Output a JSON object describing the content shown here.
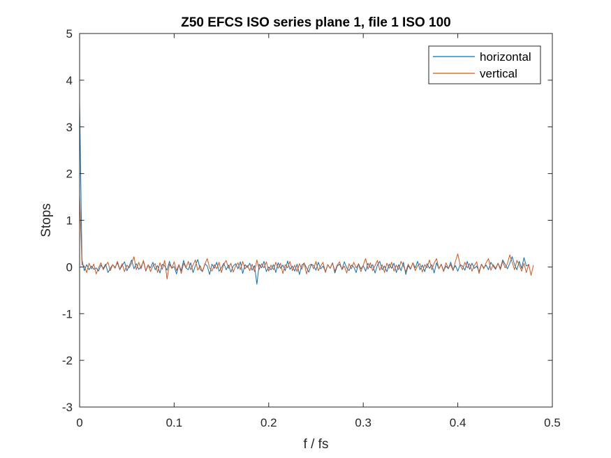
{
  "chart_data": {
    "type": "line",
    "title": "Z50 EFCS ISO series plane 1, file 1 ISO 100",
    "xlabel": "f / fs",
    "ylabel": "Stops",
    "xlim": [
      0,
      0.5
    ],
    "ylim": [
      -3,
      5
    ],
    "x_ticks": [
      0,
      0.1,
      0.2,
      0.3,
      0.4,
      0.5
    ],
    "x_tick_labels": [
      "0",
      "0.1",
      "0.2",
      "0.3",
      "0.4",
      "0.5"
    ],
    "y_ticks": [
      -3,
      -2,
      -1,
      0,
      1,
      2,
      3,
      4,
      5
    ],
    "y_tick_labels": [
      "-3",
      "-2",
      "-1",
      "0",
      "1",
      "2",
      "3",
      "4",
      "5"
    ],
    "grid": false,
    "legend_position": "top-right",
    "x_step": 0.0025,
    "series": [
      {
        "name": "horizontal",
        "color": "#0072BD",
        "values": [
          3.55,
          0.15,
          -0.08,
          0.05,
          -0.06,
          0.02,
          -0.05,
          -0.02,
          -0.09,
          0.04,
          -0.03,
          0.06,
          -0.12,
          -0.03,
          0.05,
          -0.01,
          0.09,
          -0.06,
          0.03,
          0.11,
          -0.08,
          0.02,
          0.15,
          -0.04,
          0.07,
          -0.05,
          0.0,
          0.12,
          -0.09,
          0.04,
          -0.02,
          0.1,
          -0.06,
          0.03,
          -0.13,
          0.06,
          0.02,
          -0.07,
          0.12,
          -0.03,
          0.01,
          -0.15,
          0.05,
          -0.08,
          0.14,
          -0.02,
          -0.06,
          0.09,
          -0.12,
          0.03,
          0.16,
          -0.05,
          -0.1,
          0.07,
          0.02,
          -0.16,
          0.06,
          -0.03,
          0.1,
          -0.09,
          -0.02,
          0.08,
          -0.06,
          0.04,
          -0.11,
          0.02,
          0.07,
          -0.04,
          0.11,
          -0.14,
          0.05,
          -0.01,
          0.08,
          -0.07,
          0.03,
          -0.37,
          0.06,
          -0.02,
          0.12,
          -0.1,
          0.0,
          -0.06,
          0.05,
          -0.12,
          0.09,
          -0.03,
          0.04,
          -0.08,
          0.13,
          -0.05,
          0.02,
          -0.09,
          0.06,
          -0.16,
          0.04,
          0.08,
          -0.02,
          -0.11,
          0.06,
          0.03,
          -0.07,
          0.1,
          -0.04,
          0.02,
          -0.1,
          0.05,
          -0.03,
          0.09,
          -0.13,
          0.02,
          0.06,
          -0.05,
          0.11,
          -0.02,
          -0.08,
          0.04,
          0.0,
          -0.12,
          0.07,
          -0.04,
          0.03,
          -0.09,
          0.08,
          -0.02,
          0.05,
          -0.13,
          0.04,
          0.12,
          -0.06,
          0.02,
          -0.1,
          0.06,
          -0.03,
          0.08,
          -0.12,
          0.05,
          -0.08,
          0.1,
          -0.16,
          0.03,
          -0.05,
          0.09,
          -0.02,
          0.12,
          -0.06,
          0.04,
          -0.1,
          0.07,
          -0.03,
          0.05,
          -0.13,
          0.09,
          -0.04,
          0.06,
          -0.08,
          0.02,
          -0.04,
          0.1,
          -0.06,
          0.03,
          -0.09,
          0.05,
          0.02,
          -0.07,
          0.12,
          -0.05,
          0.08,
          -0.03,
          0.02,
          -0.1,
          0.06,
          -0.02,
          0.04,
          -0.06,
          0.1,
          0.02,
          -0.05,
          0.08,
          -0.03,
          0.15,
          0.06,
          -0.04,
          0.08,
          0.22,
          0.05,
          -0.06,
          0.12,
          -0.03,
          0.2,
          0.02,
          0.05
        ]
      },
      {
        "name": "vertical",
        "color": "#D95319",
        "values": [
          1.55,
          0.05,
          0.02,
          -0.12,
          0.08,
          -0.04,
          0.06,
          -0.15,
          -0.02,
          0.09,
          -0.06,
          0.03,
          0.1,
          -0.08,
          0.05,
          -0.03,
          0.12,
          -0.05,
          0.07,
          -0.1,
          0.04,
          -0.02,
          0.08,
          0.22,
          -0.06,
          0.1,
          -0.04,
          0.14,
          -0.08,
          0.05,
          -0.1,
          0.02,
          0.07,
          -0.12,
          0.09,
          -0.05,
          0.14,
          -0.26,
          0.06,
          -0.03,
          0.11,
          -0.08,
          0.05,
          -0.14,
          0.08,
          -0.02,
          0.12,
          -0.06,
          0.04,
          0.15,
          -0.07,
          0.03,
          -0.1,
          0.06,
          0.18,
          -0.02,
          -0.09,
          0.05,
          -0.04,
          0.1,
          -0.12,
          0.06,
          0.14,
          -0.03,
          0.08,
          -0.11,
          0.02,
          0.09,
          -0.06,
          0.12,
          -0.04,
          0.03,
          -0.08,
          0.06,
          -0.1,
          0.15,
          -0.05,
          0.07,
          -0.02,
          0.11,
          -0.09,
          0.04,
          -0.06,
          0.1,
          -0.03,
          0.08,
          -0.14,
          0.05,
          -0.02,
          0.12,
          -0.08,
          0.04,
          -0.1,
          0.07,
          -0.05,
          0.09,
          -0.15,
          0.03,
          0.06,
          -0.04,
          0.12,
          -0.08,
          0.02,
          0.1,
          -0.12,
          0.05,
          -0.03,
          0.08,
          -0.09,
          0.04,
          0.11,
          -0.06,
          0.02,
          -0.13,
          0.07,
          -0.04,
          0.1,
          -0.02,
          0.06,
          -0.1,
          0.04,
          0.18,
          -0.05,
          0.09,
          -0.08,
          0.03,
          0.14,
          -0.07,
          0.05,
          -0.12,
          0.08,
          -0.03,
          0.1,
          -0.09,
          0.04,
          -0.06,
          0.12,
          0.02,
          -0.1,
          0.06,
          -0.04,
          0.09,
          -0.08,
          0.03,
          0.07,
          -0.11,
          0.05,
          -0.02,
          0.15,
          -0.06,
          0.08,
          0.18,
          -0.04,
          0.06,
          -0.1,
          0.09,
          -0.03,
          0.05,
          -0.08,
          0.12,
          0.28,
          0.04,
          -0.06,
          0.1,
          -0.02,
          0.07,
          -0.09,
          0.03,
          0.11,
          -0.14,
          0.06,
          -0.04,
          0.09,
          0.18,
          -0.07,
          0.05,
          -0.03,
          0.08,
          -0.06,
          0.12,
          -0.02,
          0.07,
          0.26,
          0.1,
          -0.06,
          0.14,
          0.04,
          -0.09,
          0.08,
          -0.12,
          0.06,
          -0.18,
          0.04
        ]
      }
    ]
  }
}
